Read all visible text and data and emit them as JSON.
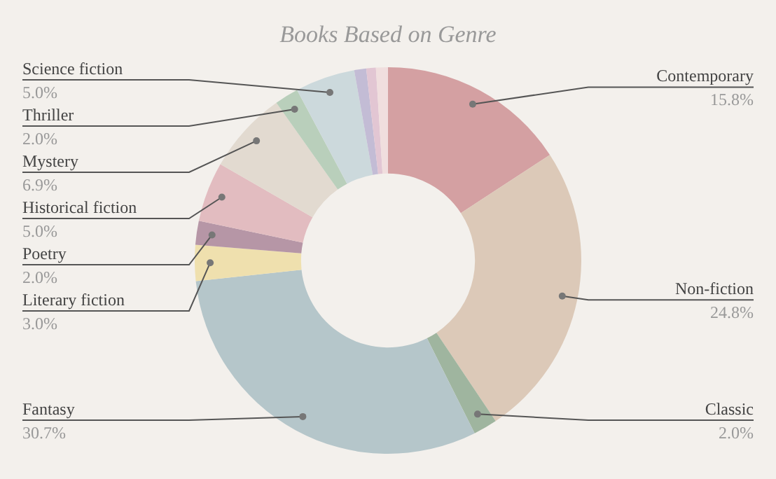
{
  "chart_data": {
    "type": "donut",
    "title": "Books Based on Genre",
    "value_labels": [
      "15.8%",
      "24.8%",
      "2.0%",
      "30.7%",
      "3.0%",
      "2.0%",
      "5.0%",
      "6.9%",
      "2.0%",
      "5.0%",
      null,
      null,
      null
    ],
    "categories": [
      "Contemporary",
      "Non-fiction",
      "Classic",
      "Fantasy",
      "Literary fiction",
      "Poetry",
      "Historical fiction",
      "Mystery",
      "Thriller",
      "Science fiction",
      null,
      null,
      null
    ],
    "values": [
      15.8,
      24.8,
      2.0,
      30.7,
      3.0,
      2.0,
      5.0,
      6.9,
      2.0,
      5.0,
      1.0,
      0.8,
      1.0
    ],
    "colors": [
      "#d4a0a2",
      "#dcc9b8",
      "#9fb59f",
      "#b5c6ca",
      "#efe0ae",
      "#b696a6",
      "#e2bcc0",
      "#e2dad0",
      "#b9cfbb",
      "#ccd9dc",
      "#c3bcd5",
      "#e2c6d3",
      "#f0dede"
    ]
  }
}
